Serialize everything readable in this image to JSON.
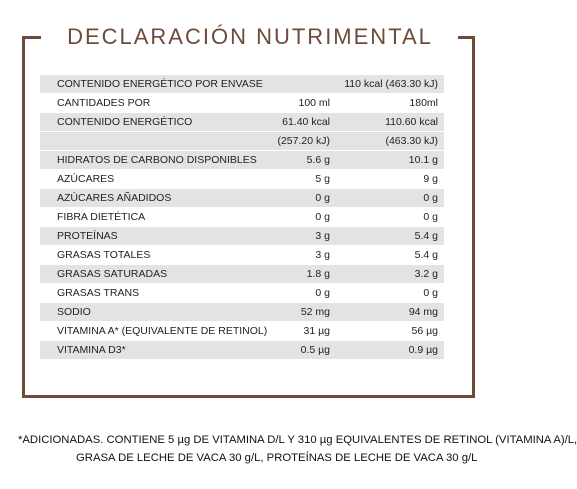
{
  "title": "DECLARACIÓN NUTRIMENTAL",
  "rows": [
    {
      "label": "CONTENIDO ENERGÉTICO POR ENVASE",
      "mid": "",
      "right": "110 kcal (463.30 kJ)"
    },
    {
      "label": "CANTIDADES POR",
      "mid": "100 ml",
      "right": "180ml"
    },
    {
      "label": "CONTENIDO ENERGÉTICO",
      "mid": "61.40 kcal",
      "right": "110.60 kcal"
    },
    {
      "label": "",
      "mid": "(257.20 kJ)",
      "right": "(463.30 kJ)"
    },
    {
      "label": "HIDRATOS DE CARBONO DISPONIBLES",
      "mid": "5.6 g",
      "right": "10.1 g"
    },
    {
      "label": "AZÚCARES",
      "mid": "5 g",
      "right": "9 g"
    },
    {
      "label": "AZÚCARES AÑADIDOS",
      "mid": "0 g",
      "right": "0 g"
    },
    {
      "label": "FIBRA DIETÉTICA",
      "mid": "0 g",
      "right": "0 g"
    },
    {
      "label": "PROTEÍNAS",
      "mid": "3 g",
      "right": "5.4 g"
    },
    {
      "label": "GRASAS TOTALES",
      "mid": "3 g",
      "right": "5.4 g"
    },
    {
      "label": "GRASAS SATURADAS",
      "mid": "1.8 g",
      "right": "3.2 g"
    },
    {
      "label": "GRASAS TRANS",
      "mid": "0 g",
      "right": "0 g"
    },
    {
      "label": "SODIO",
      "mid": "52 mg",
      "right": "94 mg"
    },
    {
      "label": "VITAMINA A* (EQUIVALENTE DE RETINOL)",
      "mid": "31 µg",
      "right": "56 µg"
    },
    {
      "label": "VITAMINA D3*",
      "mid": "0.5 µg",
      "right": "0.9 µg"
    }
  ],
  "footnote": {
    "line1": "*ADICIONADAS. CONTIENE 5 µg DE VITAMINA D/L Y 310 µg EQUIVALENTES DE RETINOL (VITAMINA A)/L,",
    "line2": "GRASA DE LECHE DE VACA 30 g/L, PROTEÍNAS DE LECHE DE VACA 30 g/L"
  },
  "colors": {
    "frame": "#6e4a39",
    "shade": "#e3e3e3"
  }
}
